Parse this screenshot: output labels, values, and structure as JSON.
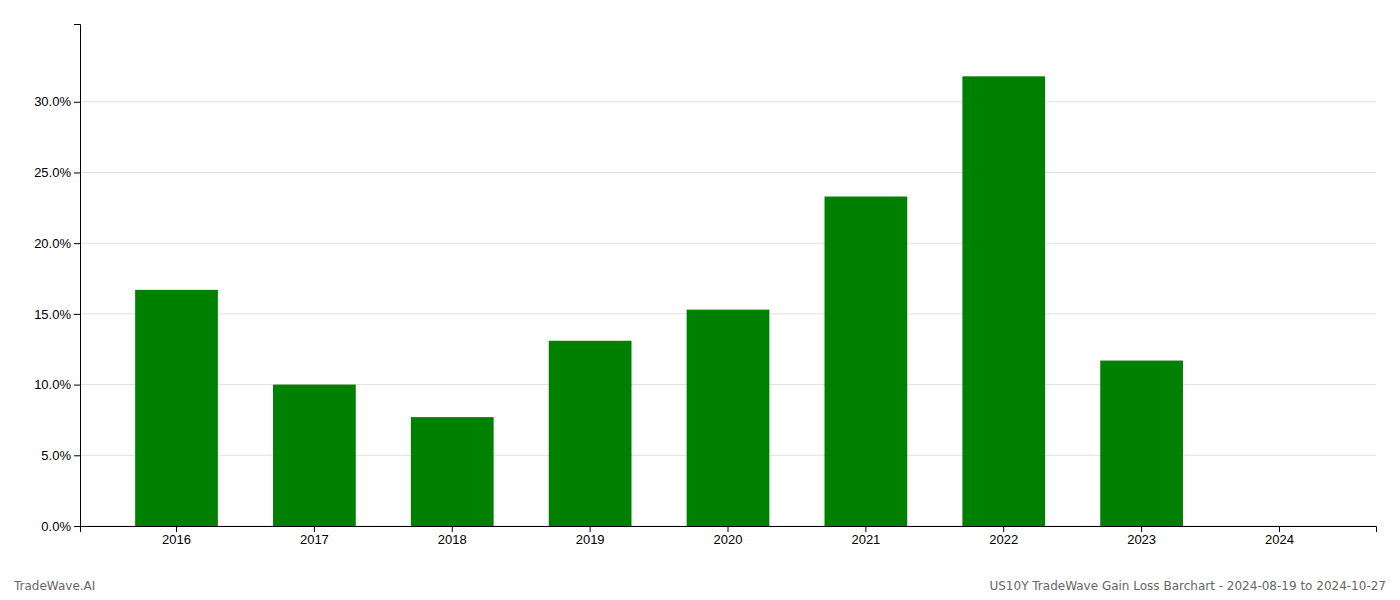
{
  "chart_data": {
    "type": "bar",
    "categories": [
      "2016",
      "2017",
      "2018",
      "2019",
      "2020",
      "2021",
      "2022",
      "2023",
      "2024"
    ],
    "values": [
      0.167,
      0.1,
      0.077,
      0.131,
      0.153,
      0.233,
      0.318,
      0.117,
      0.0
    ],
    "color": "#008000",
    "ylim": [
      0.0,
      0.355
    ],
    "yticks": [
      {
        "value": 0.0,
        "label": "0.0%"
      },
      {
        "value": 0.05,
        "label": "5.0%"
      },
      {
        "value": 0.1,
        "label": "10.0%"
      },
      {
        "value": 0.15,
        "label": "15.0%"
      },
      {
        "value": 0.2,
        "label": "20.0%"
      },
      {
        "value": 0.25,
        "label": "25.0%"
      },
      {
        "value": 0.3,
        "label": "30.0%"
      }
    ],
    "grid": true,
    "annotations": [
      "TradeWave.AI",
      "US10Y TradeWave Gain Loss Barchart - 2024-08-19 to 2024-10-27"
    ]
  }
}
